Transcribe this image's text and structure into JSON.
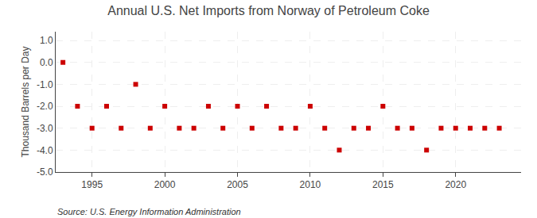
{
  "chart_data": {
    "type": "scatter",
    "title": "Annual U.S. Net Imports from Norway of Petroleum Coke",
    "y_label": "Thousand Barrels per Day",
    "annotations": [
      "Source: U.S. Energy Information Administration"
    ],
    "x": [
      1993,
      1994,
      1995,
      1996,
      1997,
      1998,
      1999,
      2000,
      2001,
      2002,
      2003,
      2004,
      2005,
      2006,
      2007,
      2008,
      2009,
      2010,
      2011,
      2012,
      2013,
      2014,
      2015,
      2016,
      2017,
      2018,
      2019,
      2020,
      2021,
      2022,
      2023
    ],
    "values": [
      0.0,
      -2.0,
      -3.0,
      -2.0,
      -3.0,
      -1.0,
      -3.0,
      -2.0,
      -3.0,
      -3.0,
      -2.0,
      -3.0,
      -2.0,
      -3.0,
      -2.0,
      -3.0,
      -3.0,
      -2.0,
      -3.0,
      -4.0,
      -3.0,
      -3.0,
      -2.0,
      -3.0,
      -3.0,
      -4.0,
      -3.0,
      -3.0,
      -3.0,
      -3.0,
      -3.0
    ],
    "color": "#cc0000",
    "marker": "square",
    "xlim": [
      1992.5,
      2024.5
    ],
    "xticks": [
      1995,
      2000,
      2005,
      2010,
      2015,
      2020
    ],
    "ylim": [
      -5.0,
      1.4
    ],
    "yticks": [
      {
        "value": 1.0,
        "label": "1.0"
      },
      {
        "value": 0.0,
        "label": "0.0"
      },
      {
        "value": -1.0,
        "label": "-1.0"
      },
      {
        "value": -2.0,
        "label": "-2.0"
      },
      {
        "value": -3.0,
        "label": "-3.0"
      },
      {
        "value": -4.0,
        "label": "-4.0"
      },
      {
        "value": -5.0,
        "label": "-5.0"
      }
    ],
    "grid": true
  }
}
